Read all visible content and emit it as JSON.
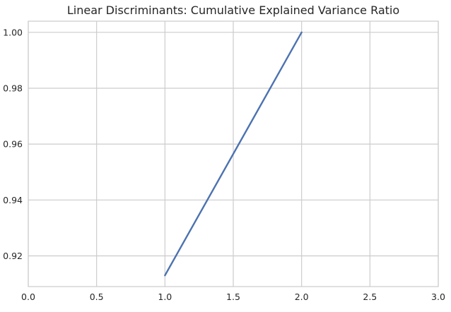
{
  "chart_data": {
    "type": "line",
    "title": "Linear Discriminants:  Cumulative Explained Variance Ratio",
    "xlabel": "",
    "ylabel": "",
    "xlim": [
      0.0,
      3.0
    ],
    "ylim": [
      0.909,
      1.004
    ],
    "x_ticks": [
      0.0,
      0.5,
      1.0,
      1.5,
      2.0,
      2.5,
      3.0
    ],
    "x_tick_labels": [
      "0.0",
      "0.5",
      "1.0",
      "1.5",
      "2.0",
      "2.5",
      "3.0"
    ],
    "y_ticks": [
      0.92,
      0.94,
      0.96,
      0.98,
      1.0
    ],
    "y_tick_labels": [
      "0.92",
      "0.94",
      "0.96",
      "0.98",
      "1.00"
    ],
    "grid": true,
    "series": [
      {
        "x": [
          1.0,
          2.0
        ],
        "y": [
          0.913,
          1.0
        ],
        "color": "#4c72b0"
      }
    ]
  }
}
